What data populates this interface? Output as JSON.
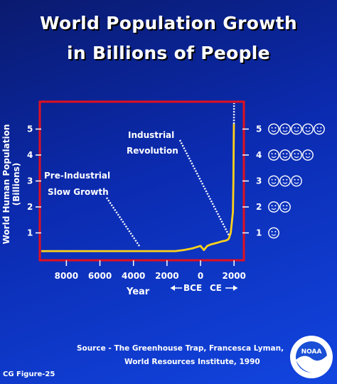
{
  "title_line1": "World Population Growth",
  "title_line2": "in Billions of People",
  "ylabel": "World Human Population (Billions)",
  "xlabel": "Year",
  "era_labels": {
    "bce": "BCE",
    "ce": "CE"
  },
  "annotations": {
    "preindustrial_1": "Pre-Industrial",
    "preindustrial_2": "Slow Growth",
    "industrial_1": "Industrial",
    "industrial_2": "Revolution"
  },
  "source_line1": "Source - The Greenhouse Trap, Francesca Lyman,",
  "source_line2": "World Resources Institute, 1990",
  "figure_label": "CG Figure-25",
  "logo_text": "NOAA",
  "colors": {
    "frame": "#e01020",
    "line": "#ffd21a",
    "projection": "#ffffff",
    "dotted": "#ffffff"
  },
  "chart_data": {
    "type": "line",
    "title": "World Population Growth in Billions of People",
    "xlabel": "Year",
    "ylabel": "World Human Population (Billions)",
    "xlim": [
      -9500,
      2500
    ],
    "ylim": [
      0,
      6
    ],
    "x_ticks": [
      -8000,
      -6000,
      -4000,
      -2000,
      0,
      2000
    ],
    "x_tick_labels": [
      "8000",
      "6000",
      "4000",
      "2000",
      "0",
      "2000"
    ],
    "y_ticks": [
      1,
      2,
      3,
      4,
      5
    ],
    "y_tick_labels": [
      "1",
      "2",
      "3",
      "4",
      "5"
    ],
    "grid": false,
    "series": [
      {
        "x": [
          -9500,
          -4000,
          -2000,
          -1500,
          -1000,
          -500,
          0,
          200,
          400,
          600,
          1000,
          1300,
          1500,
          1650,
          1700,
          1750,
          1800,
          1850,
          1900,
          1930,
          1960,
          1975,
          1987,
          1990
        ],
        "y": [
          0.3,
          0.3,
          0.3,
          0.3,
          0.34,
          0.4,
          0.5,
          0.34,
          0.5,
          0.55,
          0.62,
          0.68,
          0.7,
          0.75,
          0.8,
          0.9,
          1.0,
          1.3,
          1.6,
          1.8,
          3.0,
          4.0,
          5.0,
          5.2
        ]
      },
      {
        "x": [
          1990,
          2000
        ],
        "y": [
          5.2,
          6.0
        ],
        "style": "dotted"
      }
    ],
    "face_scale": [
      {
        "value": 1,
        "faces": 1
      },
      {
        "value": 2,
        "faces": 2
      },
      {
        "value": 3,
        "faces": 3
      },
      {
        "value": 4,
        "faces": 4
      },
      {
        "value": 5,
        "faces": 5
      }
    ]
  }
}
